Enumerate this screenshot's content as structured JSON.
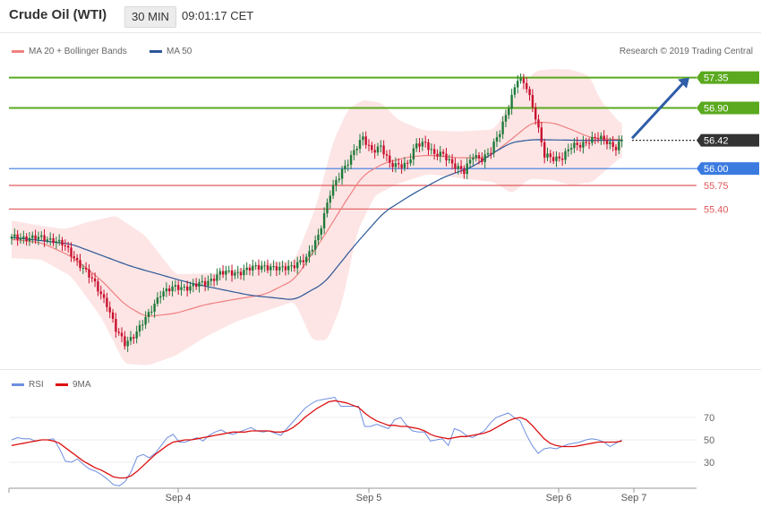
{
  "header": {
    "title": "Crude Oil (WTI)",
    "timeframe": "30 MIN",
    "time": "09:01:17 CET"
  },
  "legend": {
    "ma20_bb": "MA 20 + Bollinger Bands",
    "ma50": "MA 50",
    "copyright": "Research © 2019 Trading Central"
  },
  "rsi_legend": {
    "rsi": "RSI",
    "ma9": "9MA"
  },
  "colors": {
    "ma20": "#f08080",
    "bollinger_fill": "#fde0e0",
    "ma50": "#2b5797",
    "target_line": "#5aa91e",
    "support_blue": "#3b7be0",
    "support_red": "#e05a5a",
    "candle_up": "#1f7a3a",
    "candle_down": "#c8102e",
    "rsi": "#6f8fe0",
    "rsi_ma": "#dd1111"
  },
  "chart_data": [
    {
      "type": "candlestick",
      "title": "Crude Oil (WTI)",
      "timeframe": "30 MIN",
      "x_ticks": [
        "Sep 4",
        "Sep 5",
        "Sep 6",
        "Sep 7"
      ],
      "ylim": [
        53.0,
        57.8
      ],
      "levels": [
        {
          "label": "57.35",
          "value": 57.35,
          "kind": "resistance"
        },
        {
          "label": "56.90",
          "value": 56.9,
          "kind": "resistance"
        },
        {
          "label": "56.42",
          "value": 56.42,
          "kind": "last"
        },
        {
          "label": "56.00",
          "value": 56.0,
          "kind": "support-key"
        },
        {
          "label": "55.75",
          "value": 55.75,
          "kind": "support"
        },
        {
          "label": "55.40",
          "value": 55.4,
          "kind": "support"
        }
      ],
      "close_anchors": [
        [
          0,
          54.97
        ],
        [
          5,
          54.98
        ],
        [
          10,
          54.96
        ],
        [
          14,
          54.95
        ],
        [
          17,
          54.88
        ],
        [
          20,
          54.73
        ],
        [
          24,
          54.53
        ],
        [
          28,
          54.28
        ],
        [
          32,
          54.0
        ],
        [
          35,
          53.6
        ],
        [
          38,
          53.4
        ],
        [
          42,
          53.58
        ],
        [
          46,
          53.83
        ],
        [
          50,
          54.16
        ],
        [
          55,
          54.23
        ],
        [
          60,
          54.25
        ],
        [
          65,
          54.3
        ],
        [
          70,
          54.45
        ],
        [
          75,
          54.45
        ],
        [
          80,
          54.51
        ],
        [
          85,
          54.56
        ],
        [
          90,
          54.5
        ],
        [
          95,
          54.58
        ],
        [
          99,
          54.65
        ],
        [
          103,
          55.02
        ],
        [
          107,
          55.62
        ],
        [
          111,
          55.98
        ],
        [
          115,
          56.25
        ],
        [
          118,
          56.45
        ],
        [
          121,
          56.28
        ],
        [
          124,
          56.32
        ],
        [
          127,
          56.06
        ],
        [
          130,
          56.07
        ],
        [
          133,
          56.06
        ],
        [
          136,
          56.35
        ],
        [
          139,
          56.4
        ],
        [
          142,
          56.2
        ],
        [
          145,
          56.2
        ],
        [
          149,
          56.05
        ],
        [
          152,
          55.94
        ],
        [
          155,
          56.2
        ],
        [
          158,
          56.15
        ],
        [
          161,
          56.25
        ],
        [
          164,
          56.55
        ],
        [
          167,
          56.94
        ],
        [
          170,
          57.32
        ],
        [
          173,
          57.22
        ],
        [
          176,
          56.78
        ],
        [
          179,
          56.18
        ],
        [
          182,
          56.15
        ],
        [
          185,
          56.18
        ],
        [
          188,
          56.32
        ],
        [
          191,
          56.35
        ],
        [
          194,
          56.43
        ],
        [
          197,
          56.45
        ],
        [
          200,
          56.4
        ],
        [
          203,
          56.32
        ],
        [
          205,
          56.42
        ]
      ],
      "ma20_anchors": [
        [
          0,
          54.95
        ],
        [
          10,
          54.9
        ],
        [
          20,
          54.7
        ],
        [
          30,
          54.35
        ],
        [
          38,
          53.98
        ],
        [
          45,
          53.8
        ],
        [
          55,
          53.85
        ],
        [
          65,
          53.98
        ],
        [
          75,
          54.06
        ],
        [
          85,
          54.13
        ],
        [
          95,
          54.35
        ],
        [
          105,
          55.0
        ],
        [
          112,
          55.5
        ],
        [
          118,
          55.9
        ],
        [
          125,
          56.08
        ],
        [
          133,
          56.17
        ],
        [
          140,
          56.2
        ],
        [
          150,
          56.16
        ],
        [
          160,
          56.16
        ],
        [
          168,
          56.44
        ],
        [
          175,
          56.69
        ],
        [
          182,
          56.68
        ],
        [
          188,
          56.58
        ],
        [
          195,
          56.45
        ],
        [
          205,
          56.43
        ]
      ],
      "bb_upper_anchors": [
        [
          0,
          55.23
        ],
        [
          10,
          55.15
        ],
        [
          18,
          55.1
        ],
        [
          25,
          55.2
        ],
        [
          35,
          55.3
        ],
        [
          45,
          55.0
        ],
        [
          55,
          54.43
        ],
        [
          70,
          54.45
        ],
        [
          85,
          54.6
        ],
        [
          95,
          54.63
        ],
        [
          102,
          55.4
        ],
        [
          108,
          56.4
        ],
        [
          113,
          56.88
        ],
        [
          118,
          57.02
        ],
        [
          124,
          56.98
        ],
        [
          130,
          56.72
        ],
        [
          138,
          56.57
        ],
        [
          150,
          56.55
        ],
        [
          162,
          56.58
        ],
        [
          170,
          57.15
        ],
        [
          176,
          57.45
        ],
        [
          182,
          57.48
        ],
        [
          188,
          57.47
        ],
        [
          194,
          57.38
        ],
        [
          198,
          57.0
        ],
        [
          205,
          56.65
        ]
      ],
      "bb_lower_anchors": [
        [
          0,
          54.67
        ],
        [
          10,
          54.65
        ],
        [
          20,
          54.4
        ],
        [
          30,
          53.8
        ],
        [
          38,
          53.1
        ],
        [
          46,
          53.08
        ],
        [
          55,
          53.22
        ],
        [
          65,
          53.5
        ],
        [
          75,
          53.72
        ],
        [
          85,
          53.88
        ],
        [
          95,
          54.03
        ],
        [
          101,
          53.45
        ],
        [
          106,
          53.45
        ],
        [
          111,
          54.0
        ],
        [
          116,
          55.05
        ],
        [
          122,
          55.6
        ],
        [
          130,
          55.78
        ],
        [
          140,
          55.92
        ],
        [
          152,
          55.85
        ],
        [
          162,
          55.8
        ],
        [
          168,
          55.63
        ],
        [
          174,
          55.85
        ],
        [
          182,
          55.83
        ],
        [
          188,
          55.75
        ],
        [
          195,
          55.8
        ],
        [
          205,
          56.18
        ]
      ],
      "ma50_anchors": [
        [
          0,
          54.98
        ],
        [
          20,
          54.88
        ],
        [
          40,
          54.55
        ],
        [
          60,
          54.3
        ],
        [
          80,
          54.12
        ],
        [
          95,
          54.05
        ],
        [
          105,
          54.3
        ],
        [
          115,
          54.85
        ],
        [
          125,
          55.35
        ],
        [
          135,
          55.63
        ],
        [
          145,
          55.87
        ],
        [
          155,
          56.03
        ],
        [
          162,
          56.24
        ],
        [
          168,
          56.39
        ],
        [
          175,
          56.43
        ],
        [
          190,
          56.42
        ],
        [
          205,
          56.42
        ]
      ],
      "arrow": {
        "from": 56.45,
        "to": 57.35
      }
    },
    {
      "type": "line",
      "title": "RSI",
      "series": [
        {
          "name": "RSI",
          "values": [
            50,
            52,
            51,
            51,
            49,
            50,
            50,
            51,
            42,
            31,
            30,
            33,
            28,
            24,
            22,
            19,
            15,
            10,
            9,
            13,
            22,
            35,
            37,
            34,
            38,
            45,
            52,
            55,
            48,
            48,
            50,
            52,
            49,
            54,
            57,
            59,
            56,
            55,
            57,
            59,
            61,
            58,
            57,
            58,
            56,
            54,
            60,
            66,
            72,
            78,
            82,
            85,
            86,
            87,
            88,
            80,
            80,
            80,
            80,
            62,
            62,
            64,
            62,
            60,
            68,
            70,
            63,
            58,
            57,
            57,
            49,
            50,
            51,
            45,
            60,
            58,
            54,
            52,
            55,
            58,
            65,
            70,
            72,
            74,
            70,
            67,
            55,
            45,
            38,
            42,
            43,
            42,
            44,
            46,
            47,
            48,
            50,
            51,
            50,
            48,
            44,
            47,
            50
          ]
        },
        {
          "name": "9MA",
          "values": [
            45,
            46,
            47,
            48,
            49,
            50,
            50,
            49,
            47,
            43,
            39,
            35,
            31,
            28,
            25,
            23,
            20,
            17,
            16,
            16,
            18,
            22,
            27,
            32,
            37,
            41,
            45,
            48,
            49,
            50,
            50,
            51,
            52,
            53,
            54,
            55,
            56,
            57,
            57,
            57,
            58,
            58,
            58,
            58,
            57,
            57,
            58,
            61,
            65,
            70,
            74,
            78,
            81,
            84,
            85,
            84,
            83,
            81,
            79,
            74,
            70,
            67,
            65,
            63,
            63,
            62,
            62,
            61,
            60,
            58,
            55,
            53,
            52,
            51,
            52,
            53,
            53,
            54,
            55,
            56,
            58,
            61,
            64,
            67,
            69,
            70,
            68,
            63,
            57,
            51,
            47,
            45,
            44,
            44,
            44,
            45,
            46,
            47,
            48,
            48,
            48,
            48,
            49
          ]
        }
      ],
      "y_ticks": [
        30,
        50,
        70
      ],
      "ylim": [
        10,
        90
      ]
    }
  ]
}
